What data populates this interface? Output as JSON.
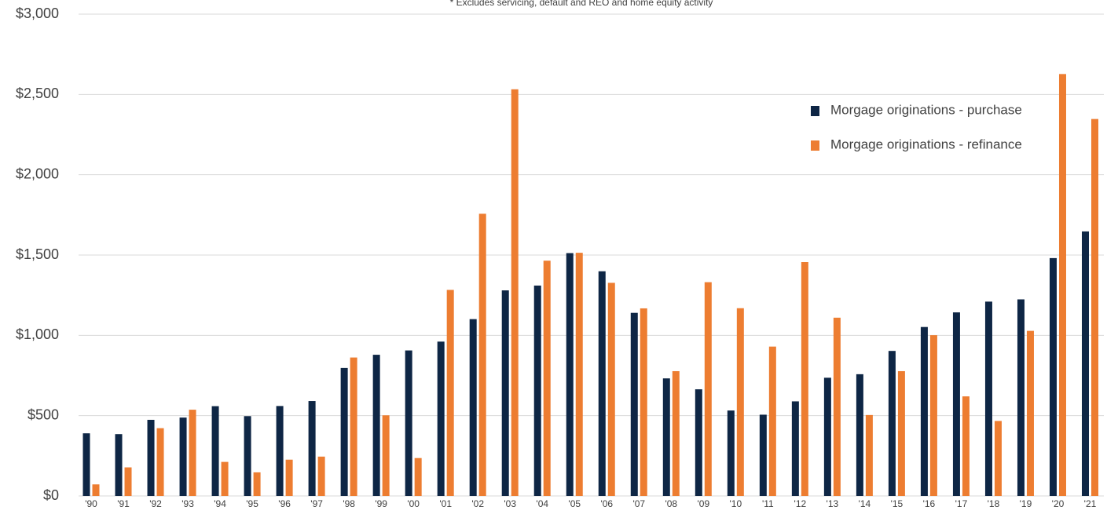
{
  "chart_data": {
    "type": "bar",
    "annotation": "* Excludes servicing, default and REO and home equity activity",
    "categories": [
      "'90",
      "'91",
      "'92",
      "'93",
      "'94",
      "'95",
      "'96",
      "'97",
      "'98",
      "'99",
      "'00",
      "'01",
      "'02",
      "'03",
      "'04",
      "'05",
      "'06",
      "'07",
      "'08",
      "'09",
      "'10",
      "'11",
      "'12",
      "'13",
      "'14",
      "'15",
      "'16",
      "'17",
      "'18",
      "'19",
      "'20",
      "'21"
    ],
    "series": [
      {
        "name": "Morgage originations - purchase",
        "color": "#0e2645",
        "values": [
          390,
          385,
          474,
          488,
          559,
          497,
          560,
          591,
          797,
          879,
          906,
          961,
          1101,
          1280,
          1310,
          1512,
          1399,
          1140,
          732,
          664,
          532,
          506,
          589,
          736,
          758,
          903,
          1052,
          1143,
          1210,
          1224,
          1481,
          1647
        ]
      },
      {
        "name": "Morgage originations - refinance",
        "color": "#ed7d31",
        "values": [
          72,
          178,
          422,
          537,
          212,
          147,
          226,
          245,
          862,
          502,
          236,
          1283,
          1757,
          2532,
          1465,
          1514,
          1327,
          1168,
          777,
          1331,
          1169,
          930,
          1456,
          1110,
          504,
          777,
          1001,
          620,
          467,
          1028,
          2627,
          2347
        ]
      }
    ],
    "ylim": [
      0,
      3000
    ],
    "yticks": [
      {
        "value": 0,
        "label": "$0"
      },
      {
        "value": 500,
        "label": "$500"
      },
      {
        "value": 1000,
        "label": "$1,000"
      },
      {
        "value": 1500,
        "label": "$1,500"
      },
      {
        "value": 2000,
        "label": "$2,000"
      },
      {
        "value": 2500,
        "label": "$2,500"
      },
      {
        "value": 3000,
        "label": "$3,000"
      }
    ],
    "grid": true,
    "legend": "upper right"
  }
}
